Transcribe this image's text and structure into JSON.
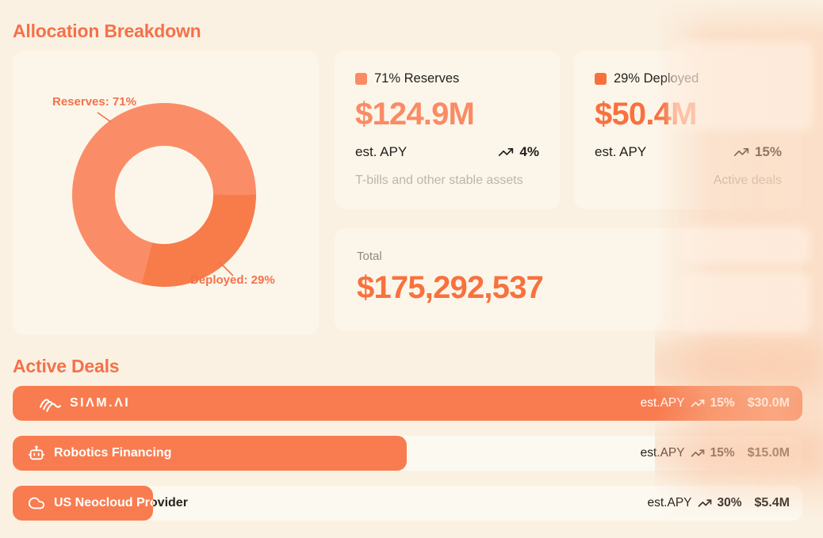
{
  "allocation": {
    "title": "Allocation Breakdown",
    "reserves_card": {
      "legend": "71% Reserves",
      "amount": "$124.9M",
      "apy_label": "est. APY",
      "apy_value": "4%",
      "caption": "T-bills and other stable assets"
    },
    "deployed_card": {
      "legend": "29% Deployed",
      "amount": "$50.4M",
      "apy_label": "est. APY",
      "apy_value": "15%",
      "caption": "Active deals"
    },
    "total_card": {
      "label": "Total",
      "value": "$175,292,537"
    }
  },
  "chart_data": {
    "type": "pie",
    "donut": true,
    "labels": [
      "Reserves",
      "Deployed"
    ],
    "values": [
      71,
      29
    ],
    "annotations": {
      "reserves": "Reserves: 71%",
      "deployed": "Deployed: 29%"
    },
    "colors": [
      "#FA8D68",
      "#F87B4A"
    ],
    "start": "deployed segment begins at 3 o'clock, clockwise",
    "legend_position": "callout-labels"
  },
  "deals": {
    "title": "Active Deals",
    "rows": [
      {
        "name": "SIΛM.ΛI",
        "icon": "waves-logo-icon",
        "apy_label": "est.APY",
        "apy_value": "15%",
        "amount": "$30.0M",
        "fill_pct": 100
      },
      {
        "name": "Robotics Financing",
        "icon": "robot-icon",
        "apy_label": "est.APY",
        "apy_value": "15%",
        "amount": "$15.0M",
        "fill_pct": 49.9
      },
      {
        "name": "US Neocloud Provider",
        "icon": "cloud-icon",
        "apy_label": "est.APY",
        "apy_value": "30%",
        "amount": "$5.4M",
        "fill_pct": 17.8
      }
    ]
  },
  "colors": {
    "page_bg": "#FBF1E2",
    "card_bg": "#FCF6EA",
    "heading_orange": "#F4714A",
    "salmon": "#FA8B64",
    "strong_orange": "#F8713F",
    "bar_orange": "#F87C50",
    "dark_text": "#211F1C",
    "muted_gray": "#BCB5AA"
  }
}
